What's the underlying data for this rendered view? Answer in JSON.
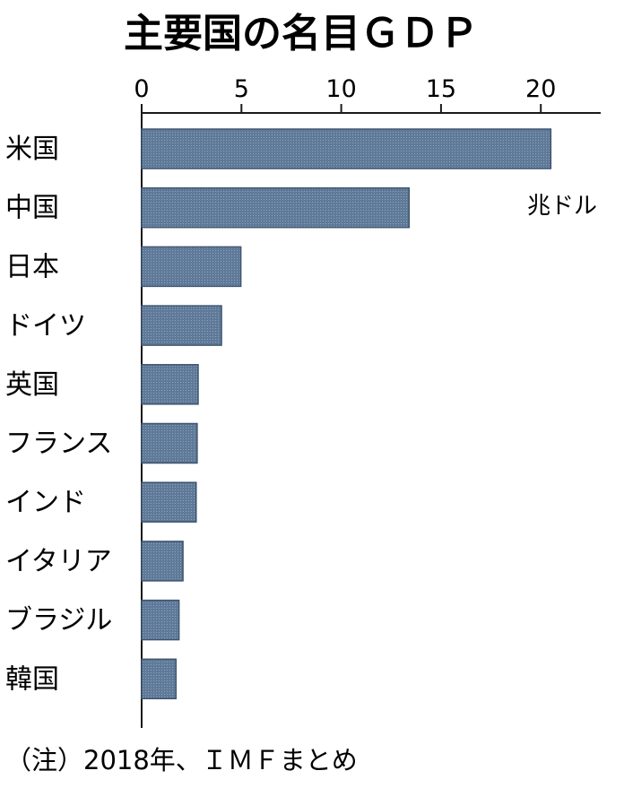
{
  "chart_data": {
    "type": "bar",
    "orientation": "horizontal",
    "title": "主要国の名目ＧＤＰ",
    "unit": "兆ドル",
    "note": "（注）2018年、ＩＭＦまとめ",
    "xlim": [
      0,
      23
    ],
    "ticks": [
      0,
      5,
      10,
      15,
      20
    ],
    "tick_labels": [
      "0",
      "5",
      "10",
      "15",
      "20"
    ],
    "categories": [
      "米国",
      "中国",
      "日本",
      "ドイツ",
      "英国",
      "フランス",
      "インド",
      "イタリア",
      "ブラジル",
      "韓国"
    ],
    "values": [
      20.5,
      13.4,
      4.97,
      4.0,
      2.83,
      2.78,
      2.73,
      2.07,
      1.87,
      1.72
    ],
    "colors": {
      "bar": "#5f7a98",
      "bar_edge": "#3d5470",
      "axis": "#1a1a1a"
    },
    "grid": false
  }
}
